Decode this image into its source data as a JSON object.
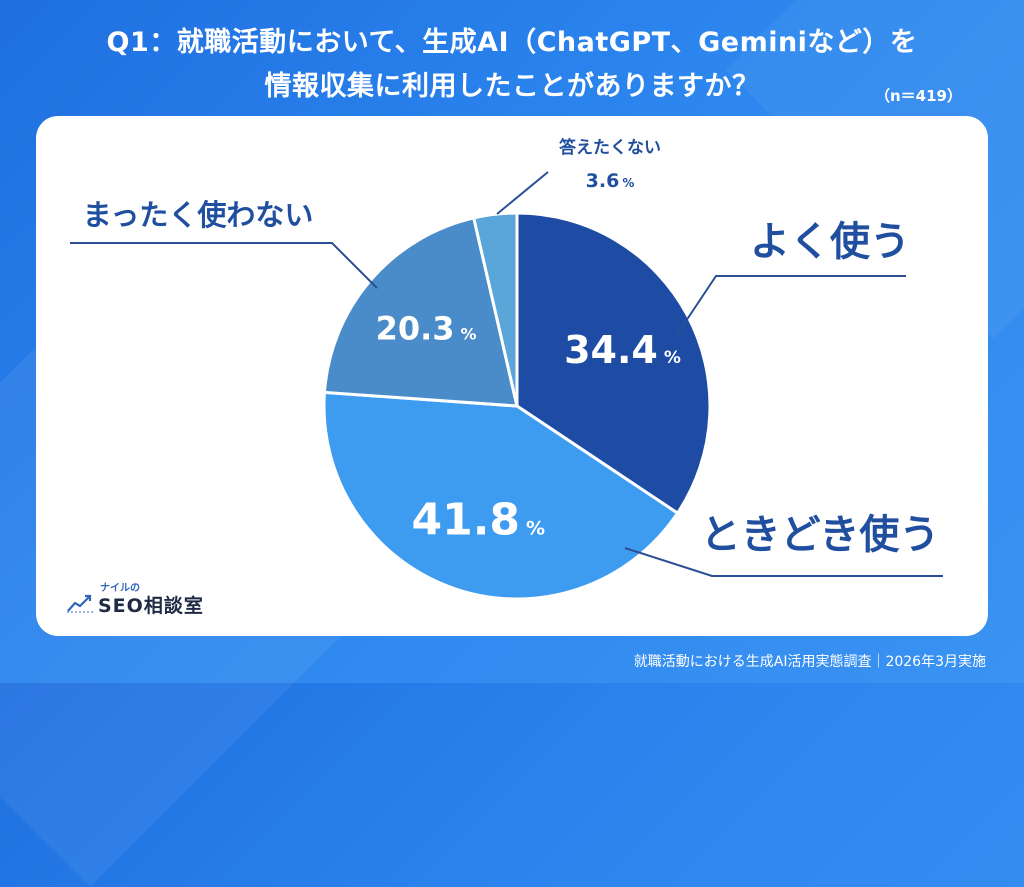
{
  "header": {
    "title_line1": "Q1：就職活動において、生成AI（ChatGPT、Geminiなど）を",
    "title_line2": "情報収集に利用したことがありますか？",
    "sample_size": "（n＝419）"
  },
  "chart_data": {
    "type": "pie",
    "start_angle_deg": 0,
    "direction": "clockwise",
    "slices": [
      {
        "label": "よく使う",
        "value": 34.4,
        "value_text": "34.4",
        "color": "#1e4ba3"
      },
      {
        "label": "ときどき使う",
        "value": 41.8,
        "value_text": "41.8",
        "color": "#3e9cf0"
      },
      {
        "label": "まったく使わない",
        "value": 20.3,
        "value_text": "20.3",
        "color": "#4a8bc9"
      },
      {
        "label": "答えたくない",
        "value": 3.6,
        "value_text": "3.6",
        "color": "#5aa6d9"
      }
    ],
    "unit": "%"
  },
  "logo": {
    "small_text": "ナイルの",
    "main_text": "SEO相談室"
  },
  "footer": {
    "caption": "就職活動における生成AI活用実態調査｜2026年3月実施"
  },
  "colors": {
    "background": "#2c86ee",
    "label_text": "#1f4f9e",
    "leader_line": "#2a4f94"
  }
}
